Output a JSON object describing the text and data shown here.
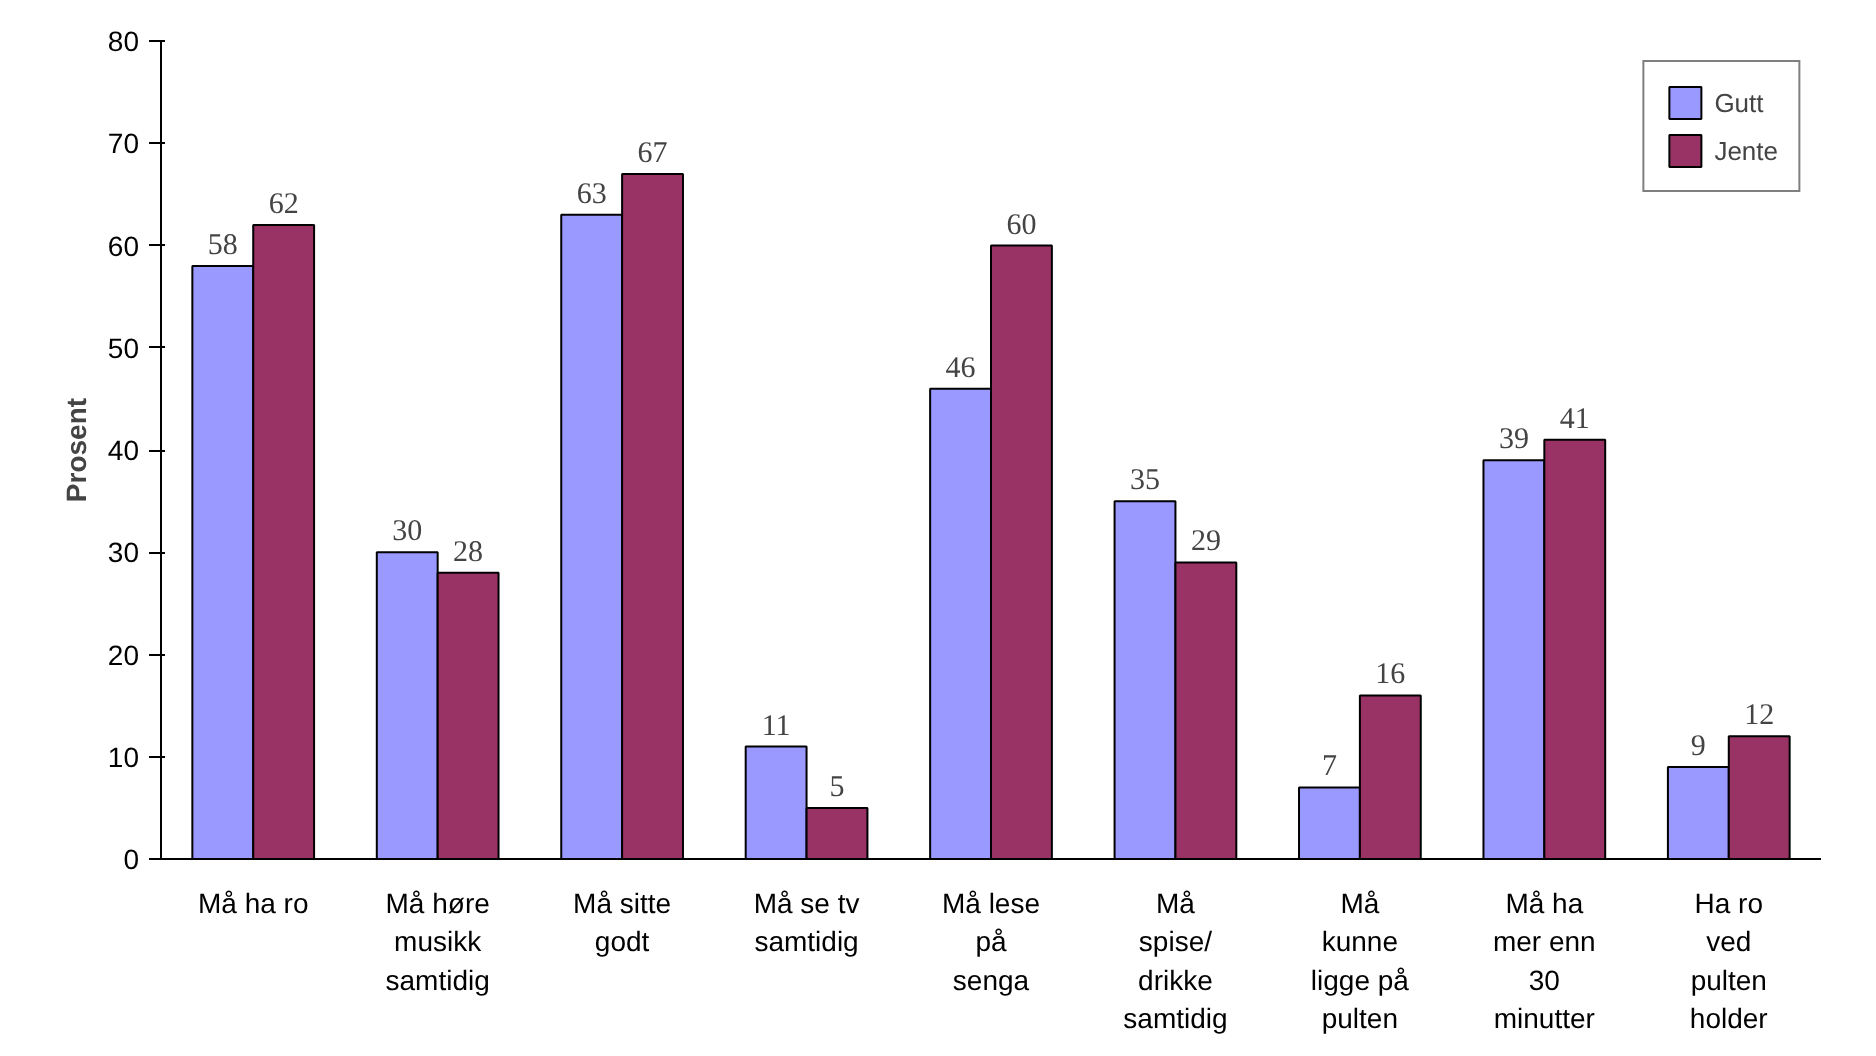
{
  "chart_data": {
    "type": "bar",
    "ylabel": "Prosent",
    "categories": [
      "Må ha ro",
      "Må høre\nmusikk\nsamtidig",
      "Må sitte\ngodt",
      "Må se tv\nsamtidig",
      "Må lese\npå\nsenga",
      "Må\nspise/\ndrikke\nsamtidig",
      "Må\nkunne\nligge på\npulten",
      "Må ha\nmer enn\n30\nminutter",
      "Ha ro\nved\npulten\nholder"
    ],
    "series": [
      {
        "name": "Gutt",
        "color": "#9999ff",
        "values": [
          58,
          30,
          63,
          11,
          46,
          35,
          7,
          39,
          9
        ]
      },
      {
        "name": "Jente",
        "color": "#993366",
        "values": [
          62,
          28,
          67,
          5,
          60,
          29,
          16,
          41,
          12
        ]
      }
    ],
    "ylim": [
      0,
      80
    ],
    "yticks": [
      0,
      10,
      20,
      30,
      40,
      50,
      60,
      70,
      80
    ],
    "data_labels": true,
    "legend": "top right",
    "grid": false
  }
}
